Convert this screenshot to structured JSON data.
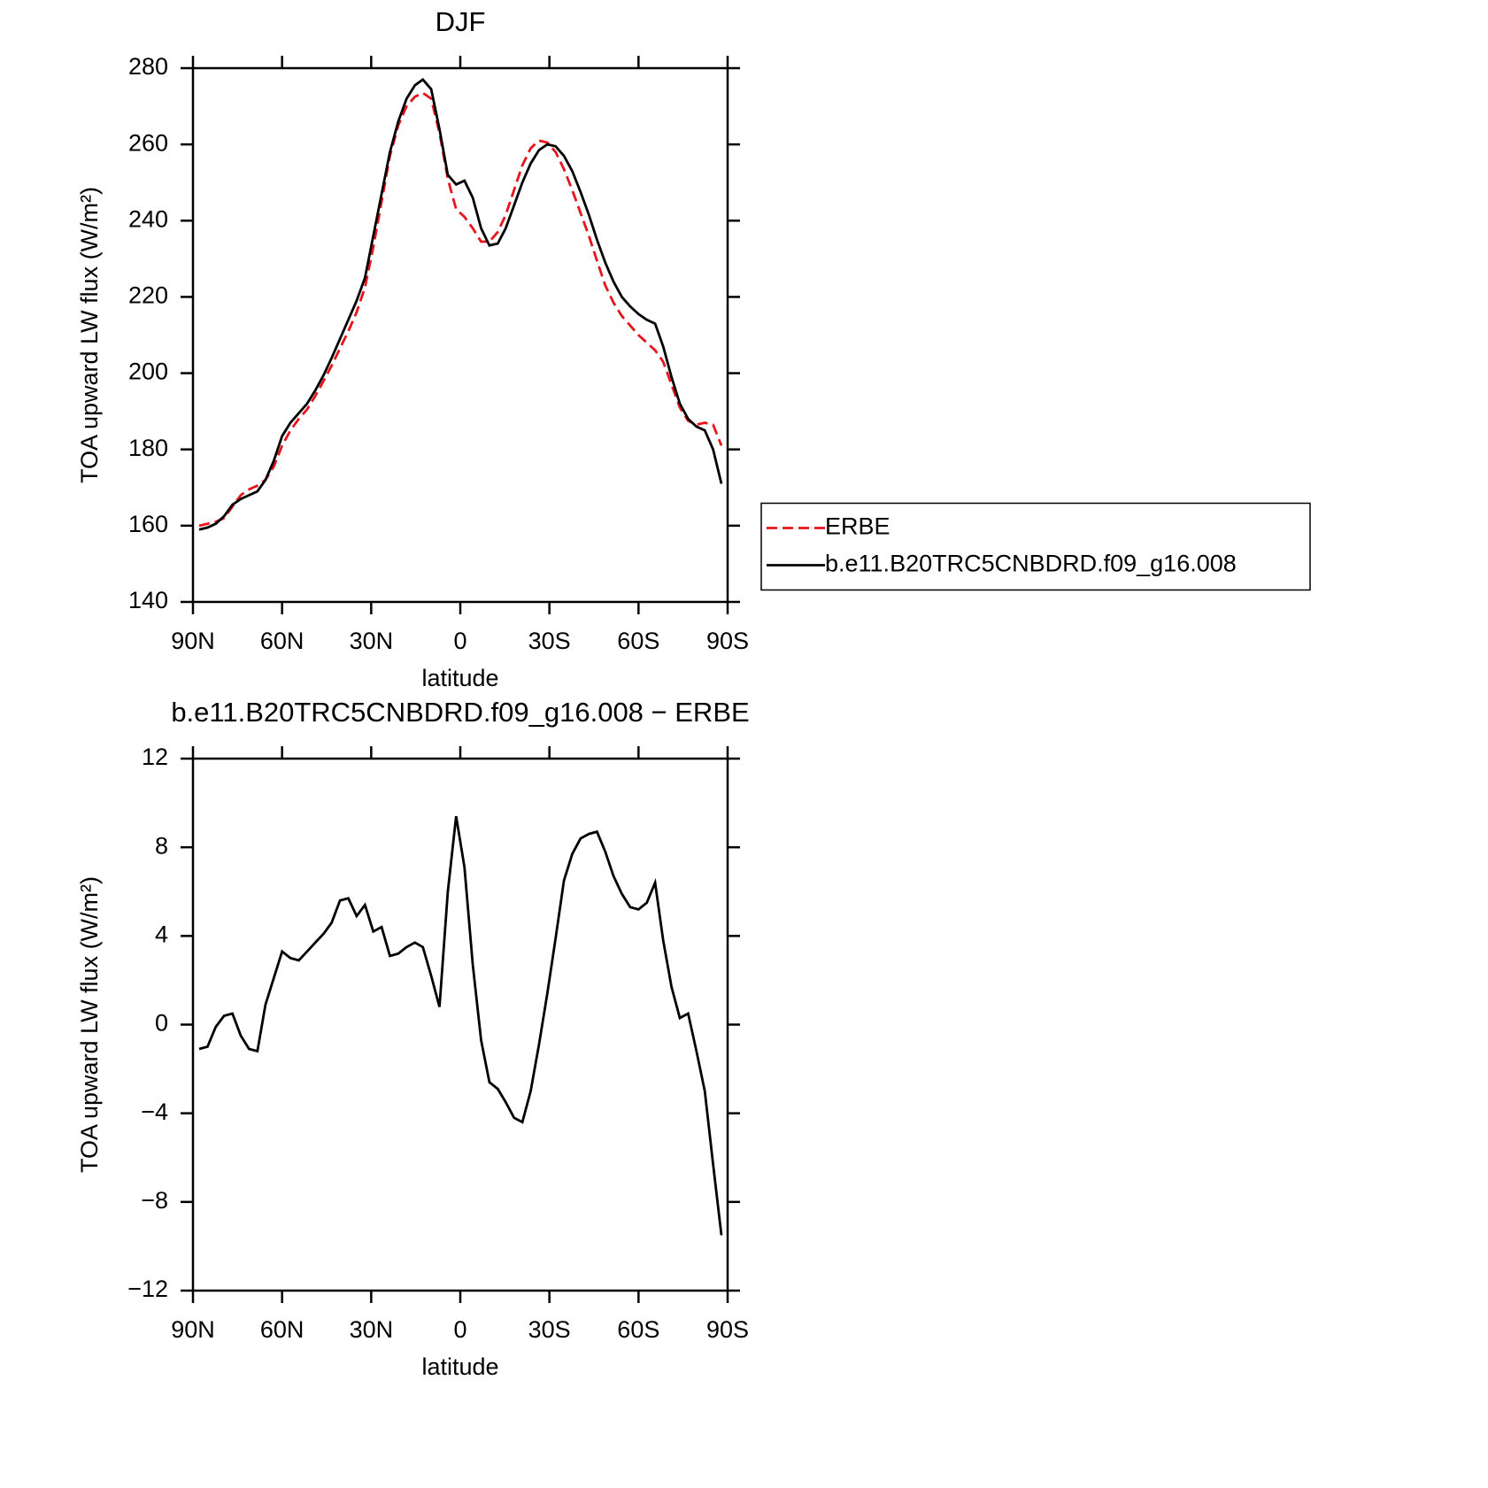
{
  "chart_data": [
    {
      "type": "line",
      "title": "DJF",
      "xlabel": "latitude",
      "ylabel": "TOA upward LW flux (W/m²)",
      "x": [
        87.9,
        85.1,
        82.3,
        79.5,
        76.7,
        73.9,
        71.1,
        68.3,
        65.6,
        62.8,
        60.0,
        57.2,
        54.4,
        51.6,
        48.8,
        46.0,
        43.3,
        40.5,
        37.7,
        34.9,
        32.1,
        29.3,
        26.5,
        23.7,
        20.9,
        18.1,
        15.3,
        12.6,
        9.8,
        7.0,
        4.2,
        1.4,
        -1.4,
        -4.2,
        -7.0,
        -9.8,
        -12.6,
        -15.3,
        -18.1,
        -20.9,
        -23.7,
        -26.5,
        -29.3,
        -32.1,
        -34.9,
        -37.7,
        -40.5,
        -43.3,
        -46.0,
        -48.8,
        -51.6,
        -54.4,
        -57.2,
        -60.0,
        -62.8,
        -65.6,
        -68.3,
        -71.1,
        -73.9,
        -76.7,
        -79.5,
        -82.3,
        -85.1,
        -87.9
      ],
      "series": [
        {
          "name": "ERBE",
          "color": "#e8141c",
          "dash": true,
          "values": [
            160,
            160.5,
            161,
            162,
            165,
            168,
            169.5,
            170.5,
            172,
            175.5,
            181,
            185,
            188,
            190.5,
            194,
            198,
            202,
            206.5,
            211,
            216,
            222.5,
            233,
            245,
            257,
            265,
            270,
            272.5,
            273.5,
            272,
            263,
            251,
            243,
            241,
            238,
            234.5,
            234.5,
            237,
            241.5,
            248,
            254.5,
            259,
            261,
            260.5,
            258,
            253.5,
            248,
            242,
            236,
            229.5,
            223,
            218.5,
            215,
            212.5,
            210,
            208,
            206,
            203,
            197,
            191,
            187.5,
            186.5,
            187,
            186.5,
            181
          ]
        },
        {
          "name": "b.e11.B20TRC5CNBDRD.f09_g16.008",
          "color": "#000000",
          "dash": false,
          "values": [
            159,
            159.5,
            160.5,
            162.5,
            165.5,
            167,
            168,
            169,
            172,
            177,
            183.5,
            187,
            189.5,
            192,
            195.5,
            199.5,
            204,
            209,
            214,
            219,
            225,
            236,
            247,
            258,
            266,
            272,
            275.5,
            277,
            274.5,
            264,
            252,
            249.5,
            250.5,
            246,
            238,
            233.5,
            234,
            238,
            244,
            250,
            255,
            258.5,
            260,
            259.5,
            257,
            253,
            247.5,
            241.5,
            235,
            229,
            224,
            220,
            217.5,
            215.5,
            214,
            213,
            207,
            199,
            192,
            188,
            186,
            185,
            180,
            171
          ]
        }
      ],
      "xlim": [
        90,
        -90
      ],
      "xticks": [
        {
          "value": 90,
          "label": "90N"
        },
        {
          "value": 60,
          "label": "60N"
        },
        {
          "value": 30,
          "label": "30N"
        },
        0,
        {
          "value": -30,
          "label": "30S"
        },
        {
          "value": -60,
          "label": "60S"
        },
        {
          "value": -90,
          "label": "90S"
        }
      ],
      "ylim": [
        140,
        280
      ],
      "yticks": [
        140,
        160,
        180,
        200,
        220,
        240,
        260,
        280
      ],
      "legend": "right"
    },
    {
      "type": "line",
      "title": "b.e11.B20TRC5CNBDRD.f09_g16.008 − ERBE",
      "xlabel": "latitude",
      "ylabel": "TOA upward LW flux (W/m²)",
      "x": [
        87.9,
        85.1,
        82.3,
        79.5,
        76.7,
        73.9,
        71.1,
        68.3,
        65.6,
        62.8,
        60.0,
        57.2,
        54.4,
        51.6,
        48.8,
        46.0,
        43.3,
        40.5,
        37.7,
        34.9,
        32.1,
        29.3,
        26.5,
        23.7,
        20.9,
        18.1,
        15.3,
        12.6,
        9.8,
        7.0,
        4.2,
        1.4,
        -1.4,
        -4.2,
        -7.0,
        -9.8,
        -12.6,
        -15.3,
        -18.1,
        -20.9,
        -23.7,
        -26.5,
        -29.3,
        -32.1,
        -34.9,
        -37.7,
        -40.5,
        -43.3,
        -46.0,
        -48.8,
        -51.6,
        -54.4,
        -57.2,
        -60.0,
        -62.8,
        -65.6,
        -68.3,
        -71.1,
        -73.9,
        -76.7,
        -79.5,
        -82.3,
        -85.1,
        -87.9
      ],
      "values": [
        -1.1,
        -1.0,
        -0.1,
        0.4,
        0.5,
        -0.5,
        -1.1,
        -1.2,
        0.9,
        2.1,
        3.3,
        3.0,
        2.9,
        3.3,
        3.7,
        4.1,
        4.6,
        5.6,
        5.7,
        4.9,
        5.4,
        4.2,
        4.4,
        3.1,
        3.2,
        3.5,
        3.7,
        3.5,
        2.2,
        0.8,
        6.0,
        9.4,
        7.1,
        2.7,
        -0.7,
        -2.6,
        -2.9,
        -3.5,
        -4.2,
        -4.4,
        -3.0,
        -0.9,
        1.4,
        3.9,
        6.5,
        7.7,
        8.4,
        8.6,
        8.7,
        7.8,
        6.7,
        5.9,
        5.3,
        5.2,
        5.5,
        6.4,
        3.8,
        1.7,
        0.3,
        0.5,
        -1.2,
        -3.0,
        -6.3,
        -9.5
      ],
      "color": "#000000",
      "xlim": [
        90,
        -90
      ],
      "xticks": [
        {
          "value": 90,
          "label": "90N"
        },
        {
          "value": 60,
          "label": "60N"
        },
        {
          "value": 30,
          "label": "30N"
        },
        0,
        {
          "value": -30,
          "label": "30S"
        },
        {
          "value": -60,
          "label": "60S"
        },
        {
          "value": -90,
          "label": "90S"
        }
      ],
      "ylim": [
        -12,
        12
      ],
      "yticks": [
        {
          "value": -12,
          "label": "−12"
        },
        {
          "value": -8,
          "label": "−8"
        },
        {
          "value": -4,
          "label": "−4"
        },
        0,
        4,
        8,
        12
      ]
    }
  ]
}
